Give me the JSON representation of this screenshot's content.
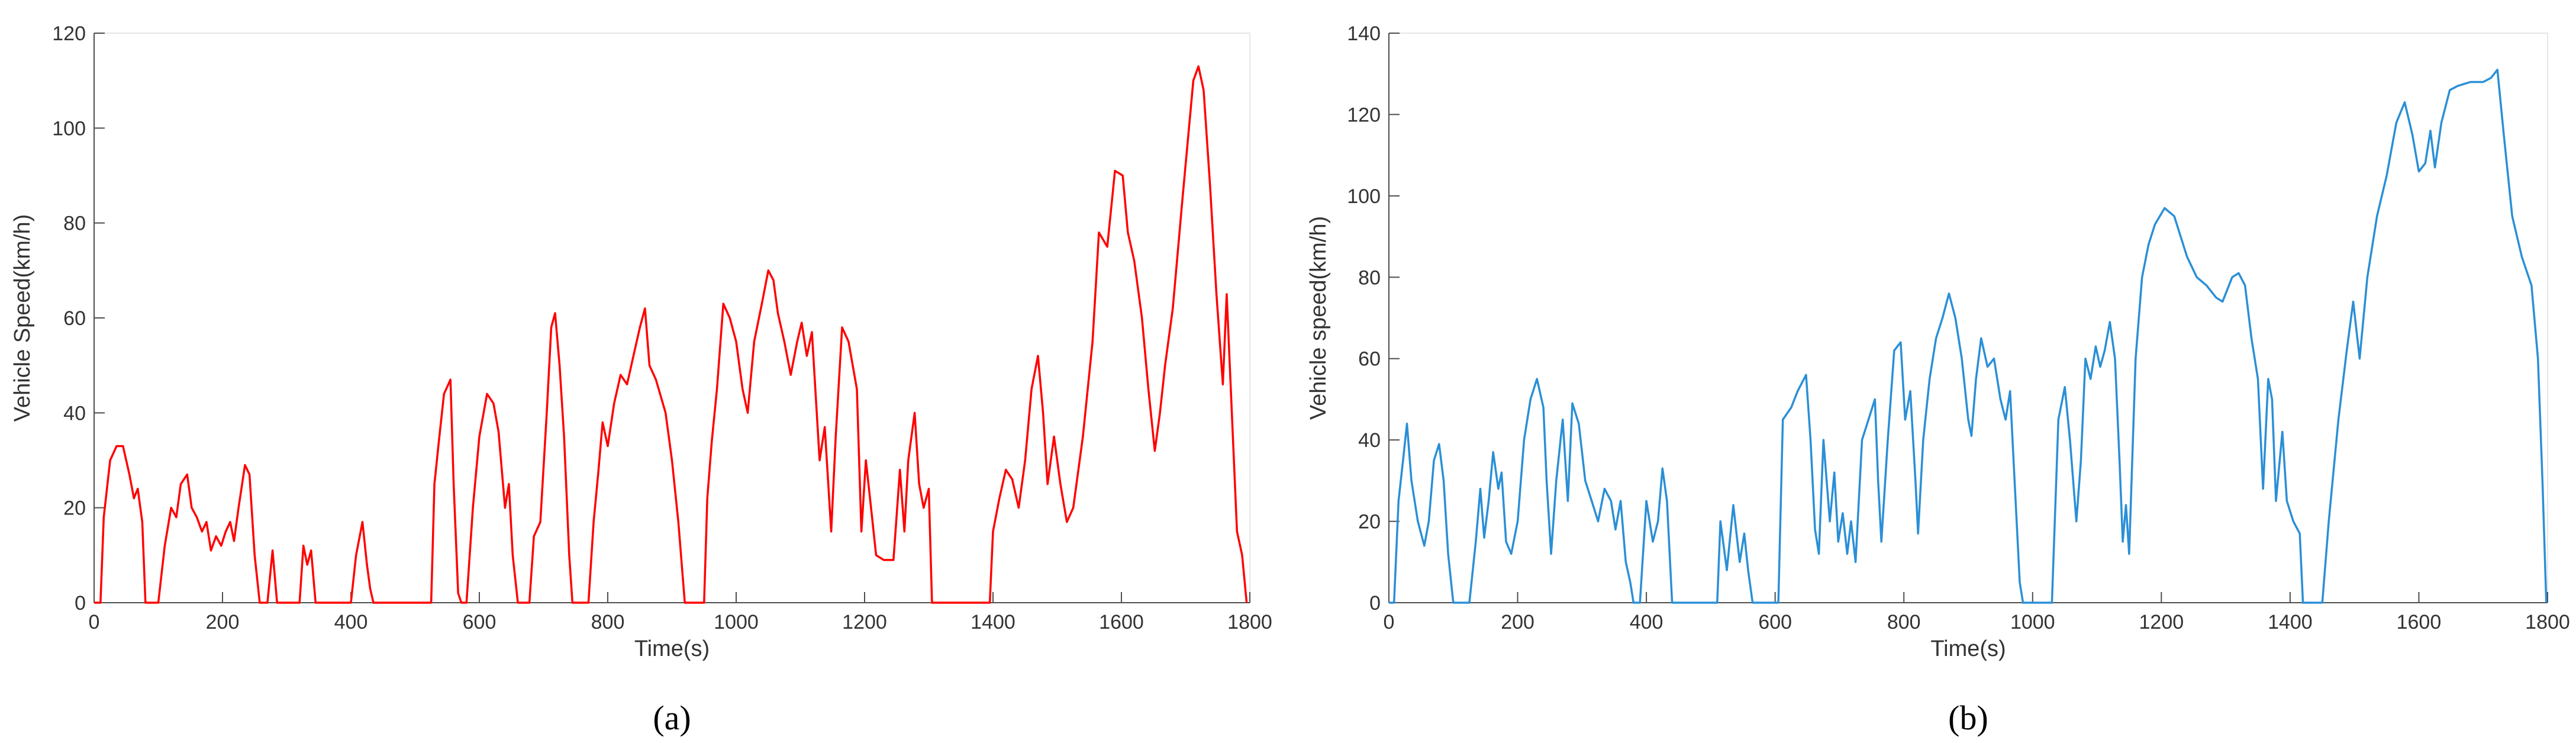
{
  "chart_data": [
    {
      "type": "line",
      "caption": "(a)",
      "xlabel": "Time(s)",
      "ylabel": "Vehicle Speed(km/h)",
      "color": "#ff0000",
      "xlim": [
        0,
        1800
      ],
      "ylim": [
        0,
        120
      ],
      "xticks": [
        0,
        200,
        400,
        600,
        800,
        1000,
        1200,
        1400,
        1600,
        1800
      ],
      "yticks": [
        0,
        20,
        40,
        60,
        80,
        100,
        120
      ],
      "x": [
        0,
        10,
        15,
        25,
        35,
        45,
        55,
        62,
        68,
        75,
        80,
        100,
        110,
        120,
        128,
        135,
        145,
        152,
        160,
        168,
        175,
        182,
        190,
        198,
        205,
        212,
        218,
        225,
        235,
        242,
        250,
        258,
        270,
        278,
        285,
        320,
        326,
        332,
        338,
        345,
        400,
        408,
        418,
        425,
        430,
        435,
        525,
        530,
        537,
        545,
        555,
        560,
        567,
        572,
        580,
        590,
        600,
        612,
        622,
        630,
        640,
        646,
        652,
        660,
        678,
        685,
        695,
        705,
        712,
        718,
        725,
        732,
        740,
        745,
        770,
        778,
        785,
        792,
        800,
        810,
        820,
        830,
        840,
        850,
        858,
        865,
        875,
        890,
        900,
        910,
        920,
        950,
        955,
        962,
        970,
        980,
        990,
        1000,
        1010,
        1018,
        1028,
        1040,
        1050,
        1058,
        1065,
        1075,
        1085,
        1095,
        1102,
        1110,
        1118,
        1130,
        1138,
        1148,
        1155,
        1165,
        1175,
        1188,
        1195,
        1202,
        1210,
        1218,
        1230,
        1245,
        1255,
        1262,
        1268,
        1278,
        1285,
        1292,
        1300,
        1305,
        1395,
        1400,
        1410,
        1420,
        1430,
        1440,
        1450,
        1460,
        1470,
        1478,
        1485,
        1495,
        1505,
        1515,
        1525,
        1540,
        1555,
        1565,
        1578,
        1590,
        1602,
        1610,
        1620,
        1632,
        1642,
        1652,
        1660,
        1668,
        1680,
        1695,
        1712,
        1720,
        1728,
        1738,
        1748,
        1758,
        1764,
        1772,
        1780,
        1788,
        1795
      ],
      "values": [
        0,
        0,
        18,
        30,
        33,
        33,
        27,
        22,
        24,
        17,
        0,
        0,
        12,
        20,
        18,
        25,
        27,
        20,
        18,
        15,
        17,
        11,
        14,
        12,
        15,
        17,
        13,
        20,
        29,
        27,
        10,
        0,
        0,
        11,
        0,
        0,
        12,
        8,
        11,
        0,
        0,
        10,
        17,
        8,
        3,
        0,
        0,
        25,
        34,
        44,
        47,
        25,
        2,
        0,
        0,
        20,
        35,
        44,
        42,
        36,
        20,
        25,
        10,
        0,
        0,
        14,
        17,
        40,
        58,
        61,
        50,
        35,
        10,
        0,
        0,
        17,
        27,
        38,
        33,
        42,
        48,
        46,
        52,
        58,
        62,
        50,
        47,
        40,
        30,
        17,
        0,
        0,
        22,
        34,
        45,
        63,
        60,
        55,
        45,
        40,
        55,
        63,
        70,
        68,
        61,
        55,
        48,
        55,
        59,
        52,
        57,
        30,
        37,
        15,
        35,
        58,
        55,
        45,
        15,
        30,
        20,
        10,
        9,
        9,
        28,
        15,
        30,
        40,
        25,
        20,
        24,
        0,
        0,
        15,
        22,
        28,
        26,
        20,
        30,
        45,
        52,
        40,
        25,
        35,
        25,
        17,
        20,
        35,
        55,
        78,
        75,
        91,
        90,
        78,
        72,
        60,
        45,
        32,
        40,
        50,
        62,
        85,
        110,
        113,
        108,
        88,
        65,
        46,
        65,
        40,
        15,
        10,
        0
      ]
    },
    {
      "type": "line",
      "caption": "(b)",
      "xlabel": "Time(s)",
      "ylabel": "Vehicle speed(km/h)",
      "color": "#2a8fd6",
      "xlim": [
        0,
        1800
      ],
      "ylim": [
        0,
        140
      ],
      "xticks": [
        0,
        200,
        400,
        600,
        800,
        1000,
        1200,
        1400,
        1600,
        1800
      ],
      "yticks": [
        0,
        20,
        40,
        60,
        80,
        100,
        120,
        140
      ],
      "x": [
        0,
        8,
        15,
        22,
        28,
        35,
        45,
        55,
        62,
        70,
        78,
        85,
        92,
        100,
        125,
        135,
        142,
        148,
        155,
        162,
        170,
        175,
        182,
        190,
        200,
        210,
        220,
        230,
        240,
        245,
        252,
        260,
        270,
        278,
        285,
        295,
        305,
        315,
        325,
        335,
        345,
        352,
        360,
        368,
        375,
        380,
        390,
        400,
        410,
        418,
        425,
        432,
        440,
        510,
        515,
        525,
        535,
        545,
        552,
        558,
        565,
        605,
        612,
        625,
        635,
        648,
        655,
        662,
        668,
        675,
        685,
        692,
        698,
        705,
        712,
        718,
        725,
        735,
        745,
        755,
        760,
        765,
        775,
        785,
        795,
        802,
        810,
        818,
        822,
        830,
        840,
        850,
        860,
        870,
        880,
        890,
        900,
        905,
        912,
        920,
        930,
        940,
        950,
        958,
        965,
        972,
        980,
        985,
        1030,
        1040,
        1050,
        1058,
        1068,
        1075,
        1082,
        1090,
        1098,
        1105,
        1112,
        1120,
        1128,
        1135,
        1140,
        1145,
        1150,
        1160,
        1170,
        1180,
        1190,
        1205,
        1220,
        1240,
        1255,
        1270,
        1285,
        1295,
        1310,
        1320,
        1330,
        1340,
        1350,
        1358,
        1366,
        1372,
        1378,
        1388,
        1395,
        1405,
        1415,
        1420,
        1450,
        1460,
        1475,
        1488,
        1498,
        1508,
        1520,
        1535,
        1550,
        1565,
        1578,
        1590,
        1600,
        1610,
        1618,
        1625,
        1635,
        1648,
        1660,
        1680,
        1700,
        1712,
        1722,
        1732,
        1745,
        1760,
        1775,
        1785,
        1792,
        1798
      ],
      "values": [
        0,
        0,
        25,
        35,
        44,
        30,
        20,
        14,
        20,
        35,
        39,
        30,
        12,
        0,
        0,
        15,
        28,
        16,
        25,
        37,
        28,
        32,
        15,
        12,
        20,
        40,
        50,
        55,
        48,
        30,
        12,
        30,
        45,
        25,
        49,
        44,
        30,
        25,
        20,
        28,
        25,
        18,
        25,
        10,
        5,
        0,
        0,
        25,
        15,
        20,
        33,
        25,
        0,
        0,
        20,
        8,
        24,
        10,
        17,
        8,
        0,
        0,
        45,
        48,
        52,
        56,
        40,
        18,
        12,
        40,
        20,
        32,
        15,
        22,
        12,
        20,
        10,
        40,
        45,
        50,
        30,
        15,
        40,
        62,
        64,
        45,
        52,
        30,
        17,
        40,
        55,
        65,
        70,
        76,
        70,
        60,
        45,
        41,
        55,
        65,
        58,
        60,
        50,
        45,
        52,
        30,
        5,
        0,
        0,
        45,
        53,
        40,
        20,
        35,
        60,
        55,
        63,
        58,
        62,
        69,
        60,
        35,
        15,
        24,
        12,
        60,
        80,
        88,
        93,
        97,
        95,
        85,
        80,
        78,
        75,
        74,
        80,
        81,
        78,
        65,
        55,
        28,
        55,
        50,
        25,
        42,
        25,
        20,
        17,
        0,
        0,
        20,
        45,
        62,
        74,
        60,
        80,
        95,
        105,
        118,
        123,
        115,
        106,
        108,
        116,
        107,
        118,
        126,
        127,
        128,
        128,
        129,
        131,
        115,
        95,
        85,
        78,
        60,
        30,
        0
      ]
    }
  ]
}
